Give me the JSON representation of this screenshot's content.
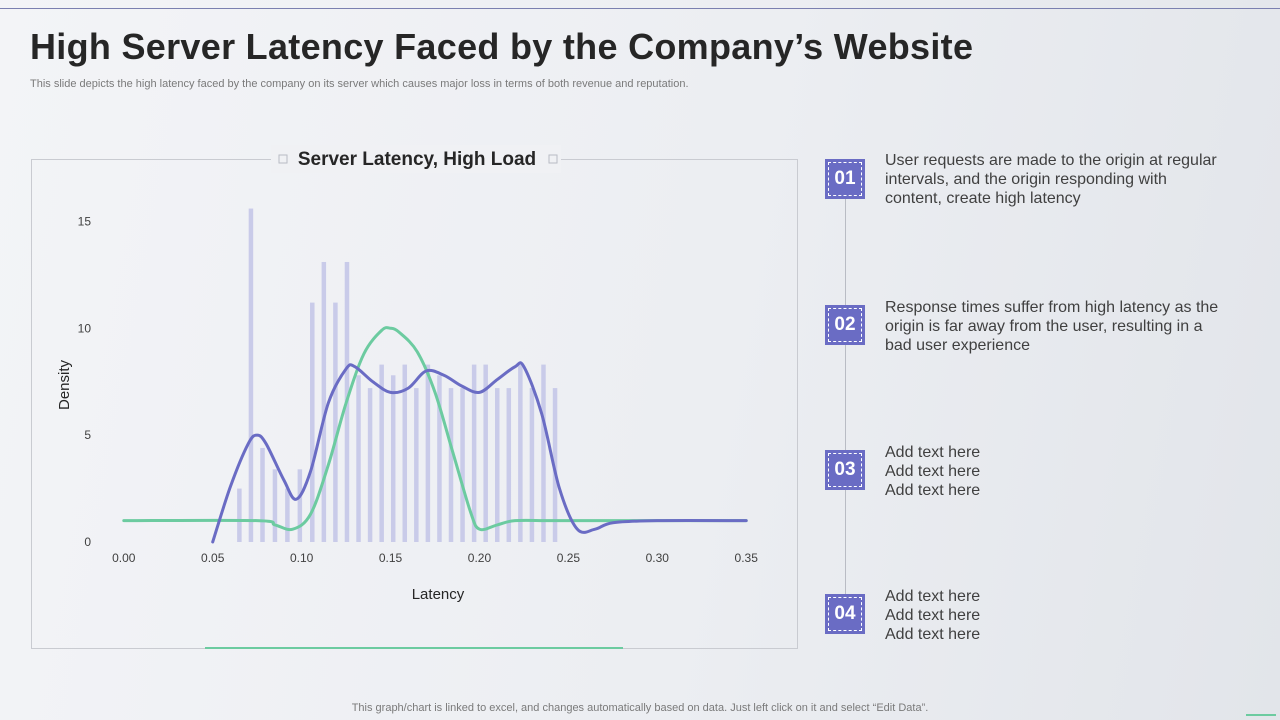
{
  "slide": {
    "title": "High Server Latency Faced by the Company’s Website",
    "subtitle": "This slide depicts the high latency faced by the company on its server which causes major loss in terms of both revenue and reputation.",
    "footer": "This graph/chart is linked to excel,  and changes automatically based on data. Just left click on it and select “Edit Data”."
  },
  "steps": [
    {
      "number": "01",
      "lines": [
        "User requests are made to the origin at regular",
        "intervals,  and the origin responding with",
        "content,  create high latency"
      ]
    },
    {
      "number": "02",
      "lines": [
        "Response times suffer from high latency as the",
        "origin is far away from the user,  resulting  in a",
        "bad user experience"
      ]
    },
    {
      "number": "03",
      "lines": [
        "Add text here",
        "Add text here",
        "Add text here"
      ]
    },
    {
      "number": "04",
      "lines": [
        "Add text here",
        "Add text here",
        "Add text here"
      ]
    }
  ],
  "chart_data": {
    "type": "bar",
    "title": "Server Latency, High Load",
    "xlabel": "Latency",
    "ylabel": "Density",
    "xlim": [
      -0.01,
      0.36
    ],
    "ylim": [
      0,
      16
    ],
    "x_ticks": [
      0.0,
      0.05,
      0.1,
      0.15,
      0.2,
      0.25,
      0.3,
      0.35
    ],
    "x_tick_labels": [
      "0.00",
      "0.05",
      "0.10",
      "0.15",
      "0.20",
      "0.25",
      "0.30",
      "0.35"
    ],
    "y_ticks": [
      0,
      5,
      10,
      15
    ],
    "y_tick_labels": [
      "0",
      "5",
      "10",
      "15"
    ],
    "grid": false,
    "legend": "none",
    "colors": {
      "bars": "#c9cbe9",
      "kde": "#6a6cc4",
      "normal": "#6ccba0"
    },
    "histogram": {
      "x": [
        0.065,
        0.0715,
        0.078,
        0.085,
        0.092,
        0.099,
        0.106,
        0.1125,
        0.119,
        0.1255,
        0.132,
        0.1385,
        0.145,
        0.1515,
        0.158,
        0.1645,
        0.171,
        0.1775,
        0.184,
        0.1905,
        0.197,
        0.2035,
        0.21,
        0.2165,
        0.223,
        0.2295,
        0.236,
        0.2425
      ],
      "values": [
        2.5,
        15.6,
        4.4,
        3.4,
        2.5,
        3.4,
        11.2,
        13.1,
        11.2,
        13.1,
        7.8,
        7.2,
        8.3,
        7.8,
        8.3,
        7.2,
        8.3,
        7.8,
        7.2,
        7.2,
        8.3,
        8.3,
        7.2,
        7.2,
        8.3,
        7.2,
        8.3,
        7.2
      ]
    },
    "series": [
      {
        "x": [
          0.05,
          0.06,
          0.07,
          0.075,
          0.08,
          0.09,
          0.097,
          0.105,
          0.115,
          0.125,
          0.13,
          0.14,
          0.15,
          0.16,
          0.17,
          0.18,
          0.19,
          0.2,
          0.21,
          0.22,
          0.225,
          0.235,
          0.245,
          0.255,
          0.265,
          0.275,
          0.3,
          0.35
        ],
        "values": [
          0,
          2.6,
          4.6,
          5.0,
          4.6,
          2.9,
          2.0,
          3.3,
          6.5,
          8.1,
          8.2,
          7.5,
          7.0,
          7.2,
          8.0,
          7.8,
          7.3,
          7.0,
          7.6,
          8.2,
          8.2,
          6.0,
          2.5,
          0.6,
          0.6,
          0.9,
          1.0,
          1.0
        ]
      },
      {
        "x": [
          0.0,
          0.075,
          0.085,
          0.095,
          0.105,
          0.115,
          0.125,
          0.135,
          0.145,
          0.15,
          0.155,
          0.165,
          0.175,
          0.185,
          0.195,
          0.2,
          0.21,
          0.22,
          0.24,
          0.27,
          0.35
        ],
        "values": [
          1.0,
          1.0,
          0.8,
          0.6,
          1.3,
          3.6,
          6.5,
          8.8,
          9.9,
          10.0,
          9.8,
          8.9,
          7.0,
          4.2,
          1.4,
          0.6,
          0.8,
          1.0,
          1.0,
          1.0,
          1.0
        ]
      }
    ]
  }
}
